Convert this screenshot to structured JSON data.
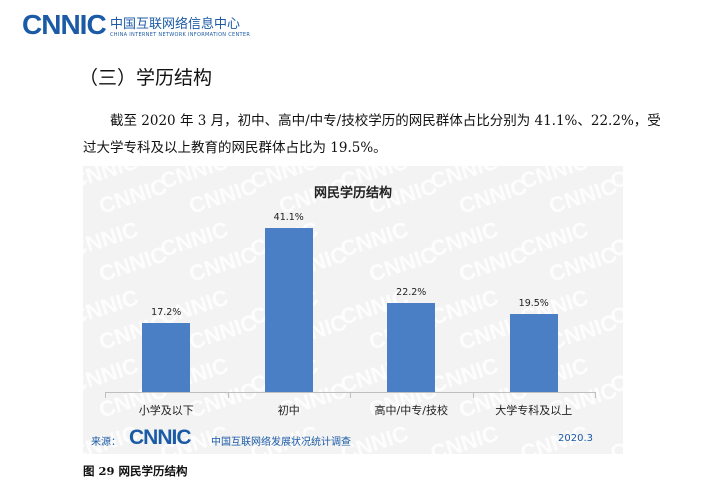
{
  "header": {
    "logo": "CNNIC",
    "org_cn": "中国互联网络信息中心",
    "org_en": "CHINA INTERNET NETWORK INFORMATION CENTER"
  },
  "section": {
    "title": "（三）学历结构",
    "paragraph": "截至 2020 年 3 月，初中、高中/中专/技校学历的网民群体占比分别为 41.1%、22.2%，受过大学专科及以上教育的网民群体占比为 19.5%。"
  },
  "chart_data": {
    "type": "bar",
    "title": "网民学历结构",
    "categories": [
      "小学及以下",
      "初中",
      "高中/中专/技校",
      "大学专科及以上"
    ],
    "values": [
      17.2,
      41.1,
      22.2,
      19.5
    ],
    "labels": [
      "17.2%",
      "41.1%",
      "22.2%",
      "19.5%"
    ],
    "ylim": [
      0,
      45
    ],
    "bar_color": "#4a7fc5",
    "grid": false,
    "legend": "none"
  },
  "source": {
    "label": "来源：",
    "logo": "CNNIC",
    "org": "中国互联网络发展状况统计调查",
    "date": "2020.3"
  },
  "caption": "图 29   网民学历结构",
  "colors": {
    "brand": "#1b5aa6",
    "bar": "#4a7fc5"
  }
}
